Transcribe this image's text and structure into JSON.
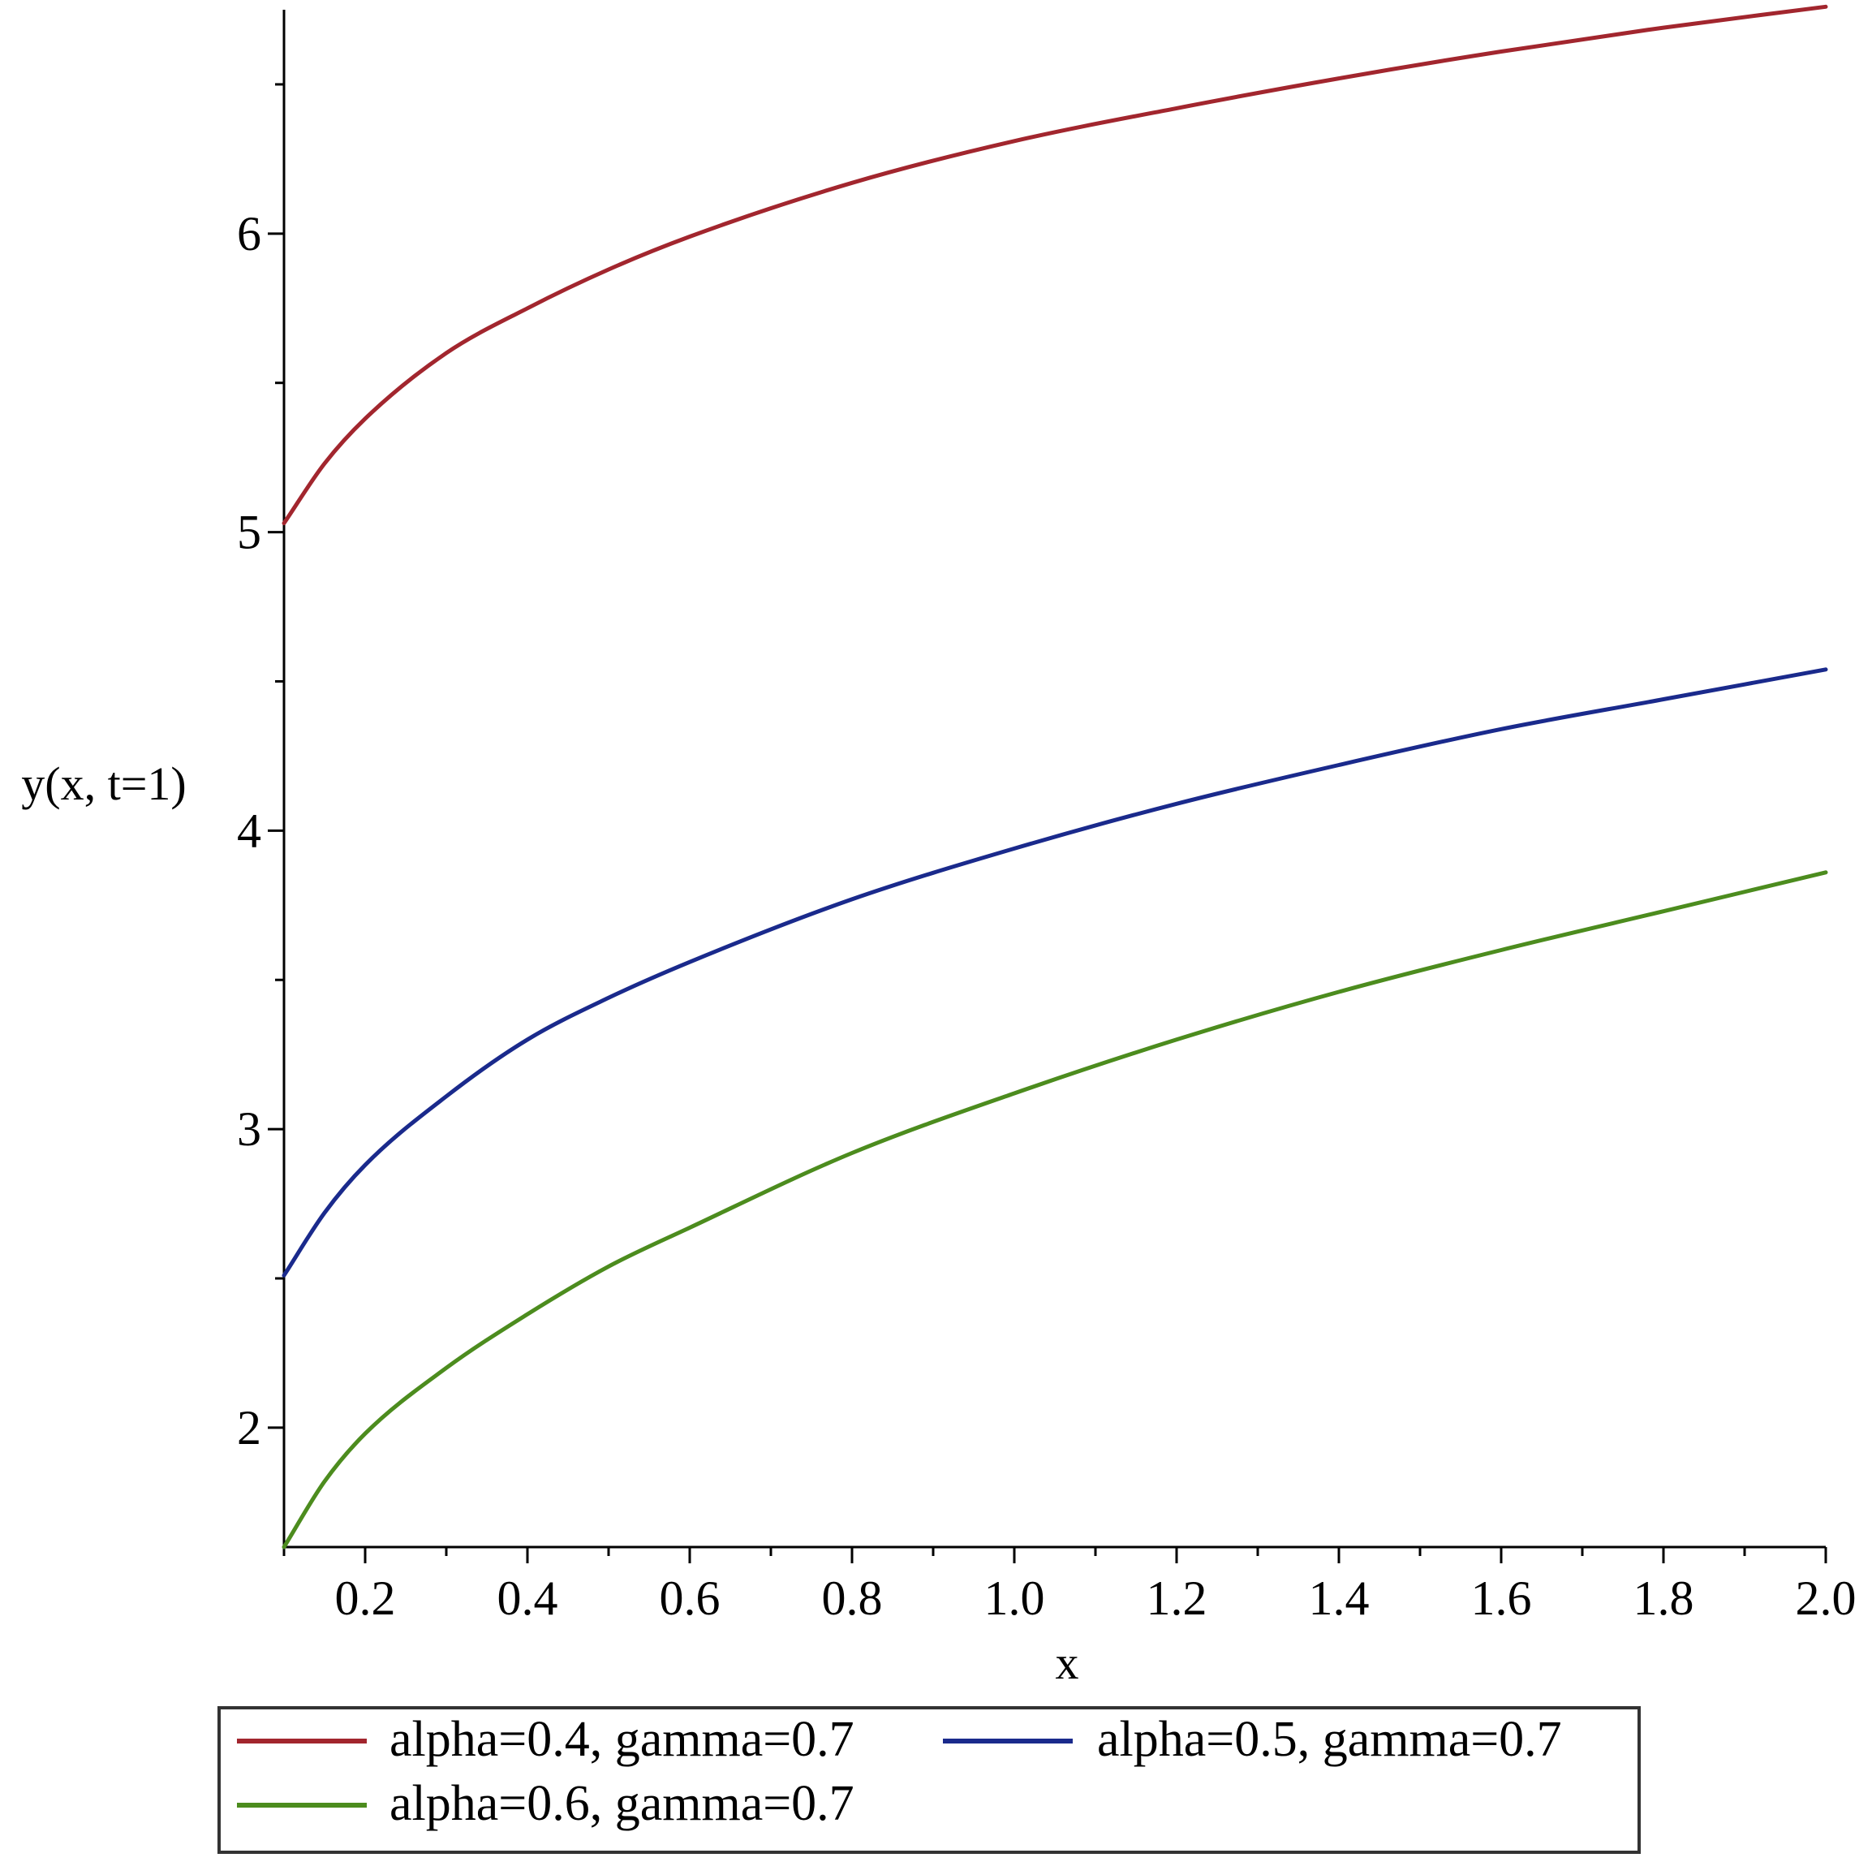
{
  "chart_data": {
    "type": "line",
    "title": "",
    "xlabel": "x",
    "ylabel": "y(x, t=1)",
    "xlim": [
      0.1,
      2.0
    ],
    "ylim": [
      1.6,
      6.75
    ],
    "x_ticks": [
      0.2,
      0.4,
      0.6,
      0.8,
      1.0,
      1.2,
      1.4,
      1.6,
      1.8,
      2.0
    ],
    "x_tick_labels": [
      "0.2",
      "0.4",
      "0.6",
      "0.8",
      "1.0",
      "1.2",
      "1.4",
      "1.6",
      "1.8",
      "2.0"
    ],
    "y_ticks": [
      2,
      3,
      4,
      5,
      6
    ],
    "y_tick_labels": [
      "2",
      "3",
      "4",
      "5",
      "6"
    ],
    "grid": false,
    "legend_position": "bottom",
    "x": [
      0.1,
      0.15,
      0.2,
      0.3,
      0.4,
      0.5,
      0.6,
      0.8,
      1.0,
      1.2,
      1.4,
      1.6,
      1.8,
      2.0
    ],
    "series": [
      {
        "name": "alpha=0.4, gamma=0.7",
        "color": "#a2262e",
        "values": [
          5.03,
          5.23,
          5.38,
          5.6,
          5.75,
          5.88,
          5.99,
          6.17,
          6.31,
          6.42,
          6.52,
          6.61,
          6.69,
          6.76
        ]
      },
      {
        "name": "alpha=0.5, gamma=0.7",
        "color": "#1a2a8c",
        "values": [
          2.51,
          2.72,
          2.88,
          3.11,
          3.3,
          3.44,
          3.56,
          3.77,
          3.94,
          4.09,
          4.22,
          4.34,
          4.44,
          4.54
        ]
      },
      {
        "name": "alpha=0.6, gamma=0.7",
        "color": "#4c8c1e",
        "values": [
          1.6,
          1.82,
          1.98,
          2.2,
          2.38,
          2.54,
          2.67,
          2.92,
          3.12,
          3.3,
          3.46,
          3.6,
          3.73,
          3.86
        ]
      }
    ]
  }
}
